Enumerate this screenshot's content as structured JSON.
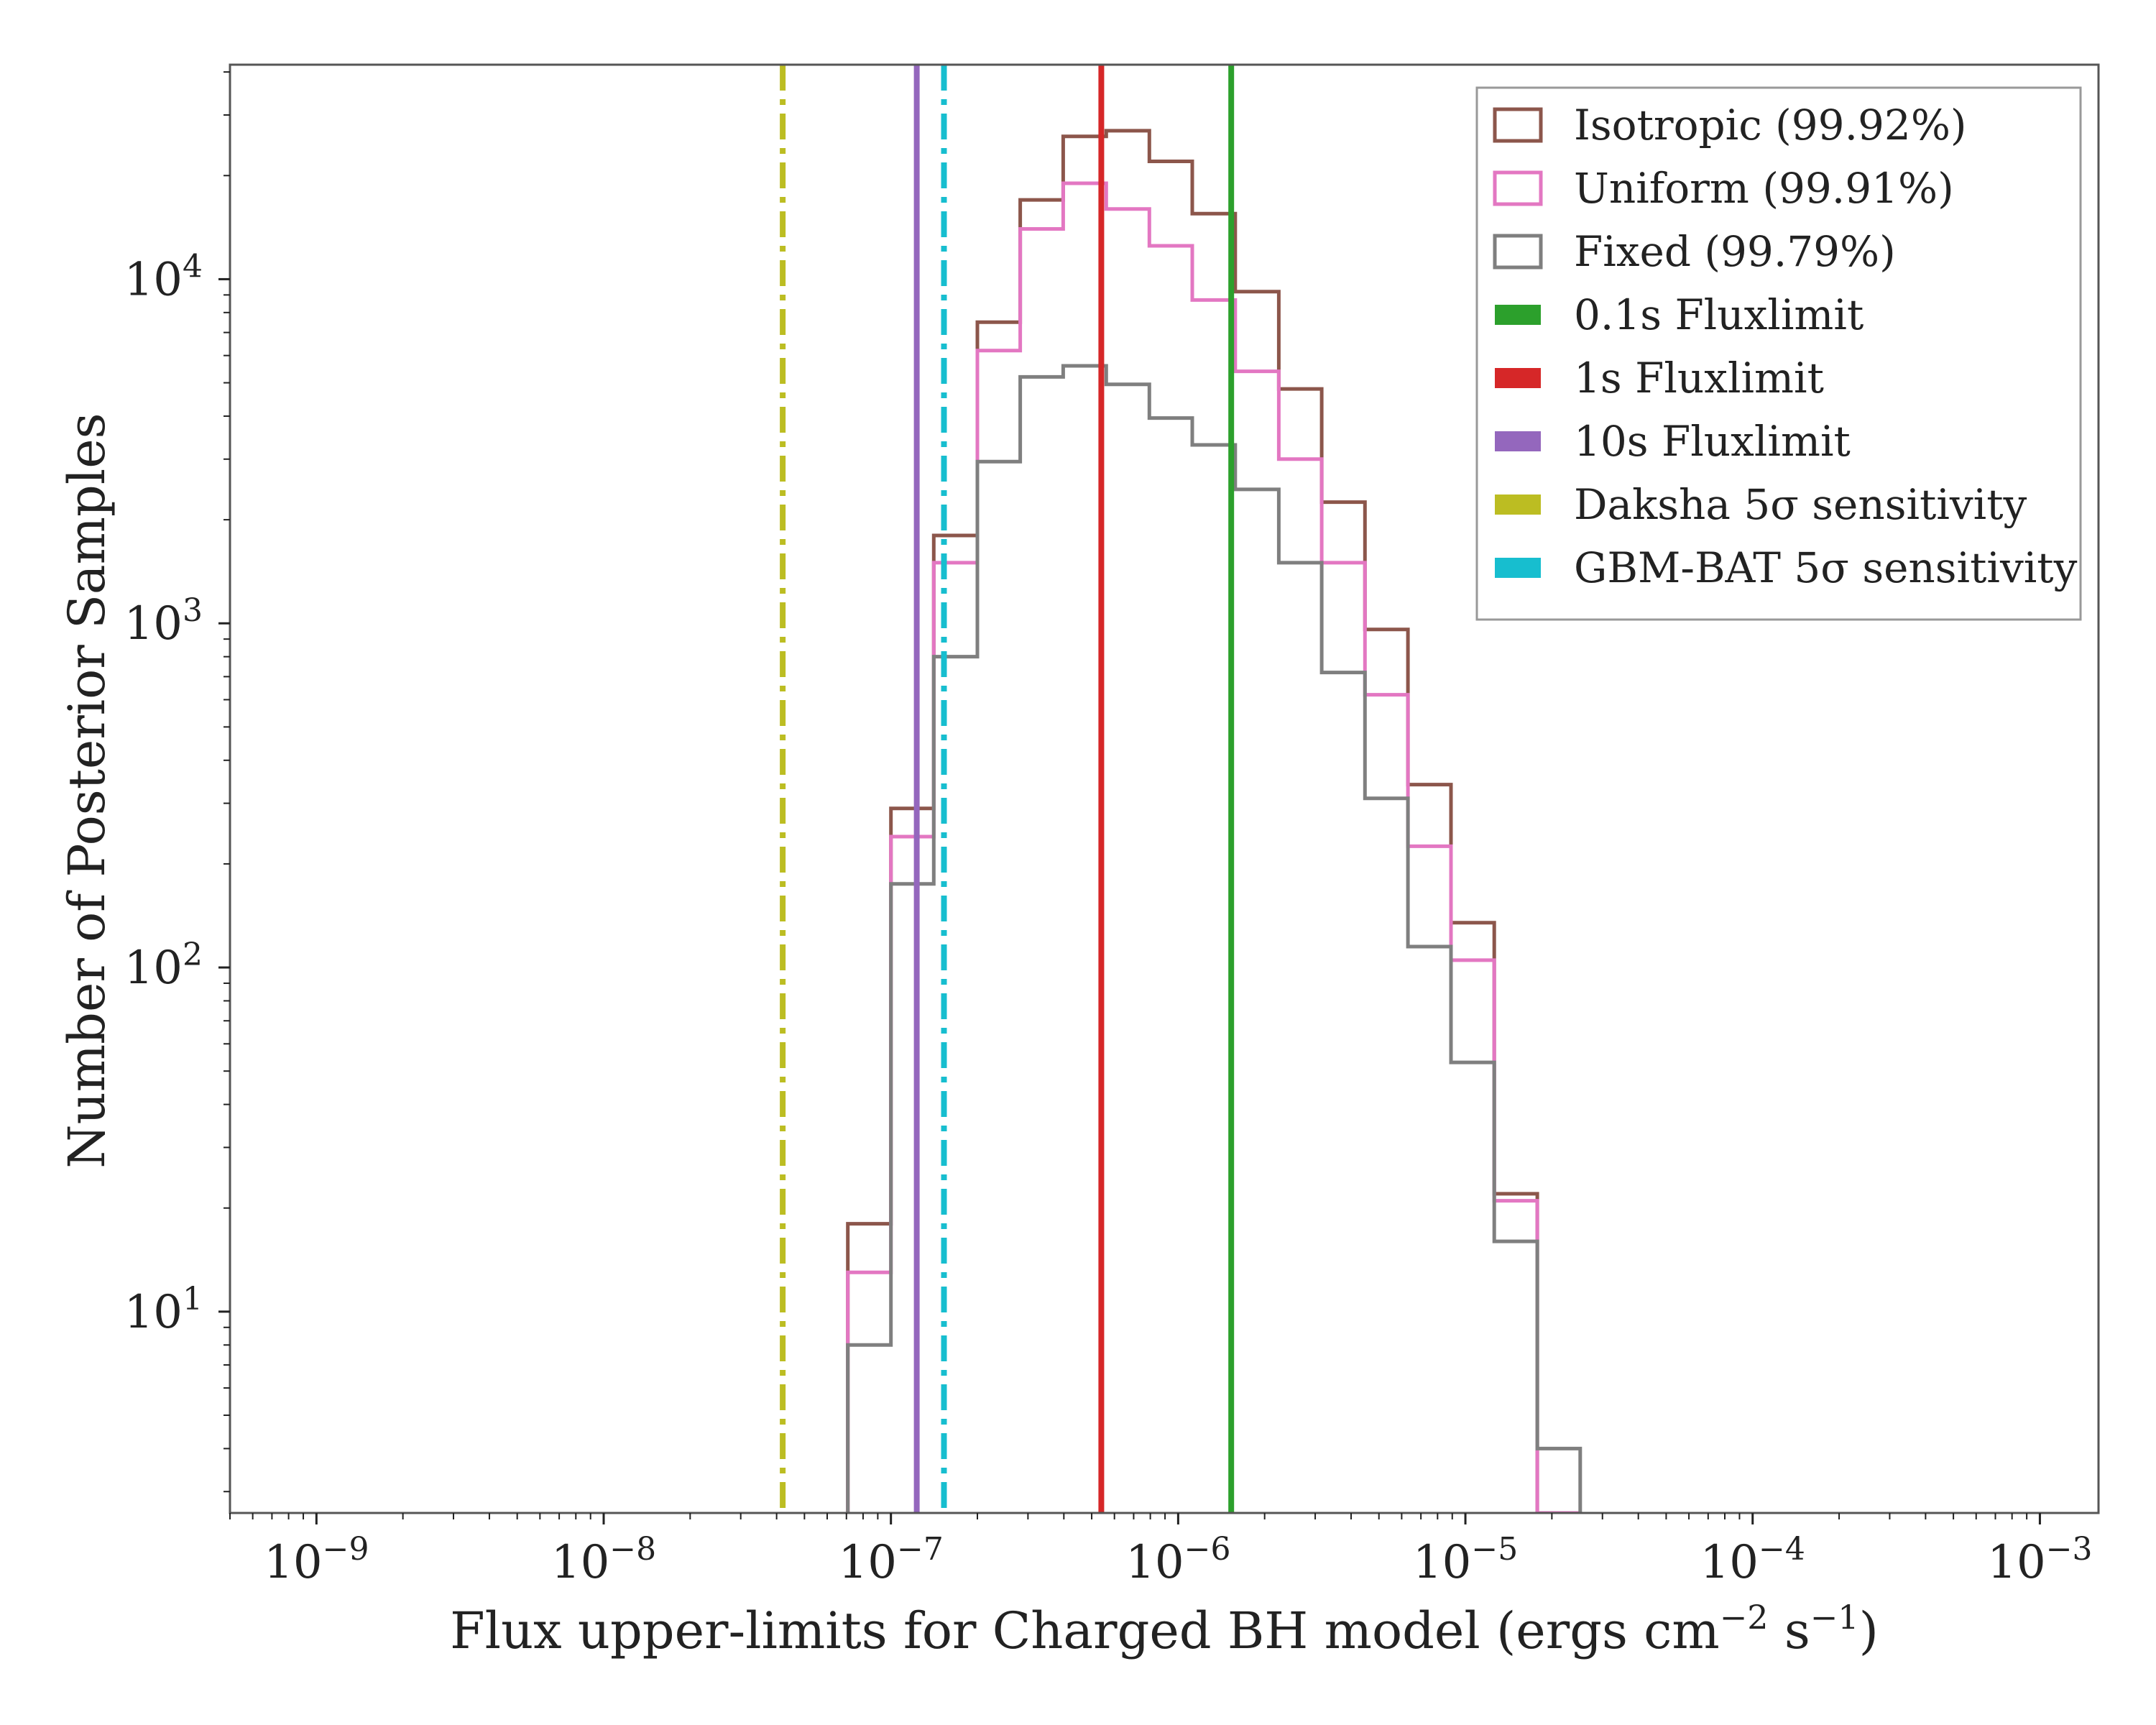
{
  "chart_data": {
    "type": "histogram",
    "title": "",
    "xlabel": {
      "main": "Flux upper-limits for Charged BH model (ergs cm",
      "exp1": "−2",
      "mid": " s",
      "exp2": "−1",
      "end": ")"
    },
    "ylabel": "Number of Posterior Samples",
    "xscale": "log",
    "yscale": "log",
    "xlim": [
      5e-10,
      0.0016
    ],
    "ylim": [
      2.6,
      42000
    ],
    "x_ticks": [
      {
        "value": 1e-09,
        "base": "10",
        "exp": "−9"
      },
      {
        "value": 1e-08,
        "base": "10",
        "exp": "−8"
      },
      {
        "value": 1e-07,
        "base": "10",
        "exp": "−7"
      },
      {
        "value": 1e-06,
        "base": "10",
        "exp": "−6"
      },
      {
        "value": 1e-05,
        "base": "10",
        "exp": "−5"
      },
      {
        "value": 0.0001,
        "base": "10",
        "exp": "−4"
      },
      {
        "value": 0.001,
        "base": "10",
        "exp": "−3"
      }
    ],
    "y_ticks": [
      {
        "value": 10,
        "base": "10",
        "exp": "1"
      },
      {
        "value": 100,
        "base": "10",
        "exp": "2"
      },
      {
        "value": 1000,
        "base": "10",
        "exp": "3"
      },
      {
        "value": 10000,
        "base": "10",
        "exp": "4"
      }
    ],
    "bin_edges": [
      7.08e-08,
      1e-07,
      1.41e-07,
      2e-07,
      2.82e-07,
      3.98e-07,
      5.62e-07,
      7.94e-07,
      1.12e-06,
      1.58e-06,
      2.24e-06,
      3.16e-06,
      4.47e-06,
      6.31e-06,
      8.91e-06,
      1.26e-05,
      1.78e-05,
      2.51e-05
    ],
    "series": [
      {
        "name": "Isotropic (99.92%)",
        "color": "#8c564b",
        "counts": [
          18,
          290,
          1800,
          7500,
          17000,
          26000,
          27000,
          22000,
          15500,
          9200,
          4800,
          2250,
          960,
          340,
          135,
          22,
          0
        ]
      },
      {
        "name": "Uniform (99.91%)",
        "color": "#e377c2",
        "counts": [
          13,
          240,
          1500,
          6200,
          14000,
          19000,
          16000,
          12500,
          8700,
          5400,
          3000,
          1500,
          620,
          225,
          105,
          21,
          0
        ]
      },
      {
        "name": "Fixed (99.79%)",
        "color": "#7f7f7f",
        "counts": [
          8,
          175,
          800,
          2950,
          5200,
          5600,
          4950,
          3950,
          3300,
          2450,
          1500,
          720,
          310,
          115,
          53,
          16,
          4
        ]
      }
    ],
    "vlines": [
      {
        "name": "0.1s Fluxlimit",
        "x": 1.53e-06,
        "color": "#2ca02c",
        "style": "solid"
      },
      {
        "name": "1s Fluxlimit",
        "x": 5.4e-07,
        "color": "#d62728",
        "style": "solid"
      },
      {
        "name": "10s Fluxlimit",
        "x": 1.23e-07,
        "color": "#9467bd",
        "style": "solid"
      },
      {
        "name": "Daksha 5σ sensitivity",
        "x": 4.2e-08,
        "color": "#bcbd22",
        "style": "dashdot"
      },
      {
        "name": "GBM-BAT 5σ sensitivity",
        "x": 1.53e-07,
        "color": "#17becf",
        "style": "dashdot"
      }
    ],
    "legend": {
      "placement": "top-right",
      "entries": [
        {
          "label": "Isotropic (99.92%)",
          "color": "#8c564b",
          "kind": "hist"
        },
        {
          "label": "Uniform (99.91%)",
          "color": "#e377c2",
          "kind": "hist"
        },
        {
          "label": "Fixed (99.79%)",
          "color": "#7f7f7f",
          "kind": "hist"
        },
        {
          "label": "0.1s Fluxlimit",
          "color": "#2ca02c",
          "kind": "line"
        },
        {
          "label": "1s Fluxlimit",
          "color": "#d62728",
          "kind": "line"
        },
        {
          "label": "10s Fluxlimit",
          "color": "#9467bd",
          "kind": "line"
        },
        {
          "label": "Daksha 5σ sensitivity",
          "color": "#bcbd22",
          "kind": "line"
        },
        {
          "label": "GBM-BAT 5σ sensitivity",
          "color": "#17becf",
          "kind": "line"
        }
      ]
    },
    "grid": false
  }
}
